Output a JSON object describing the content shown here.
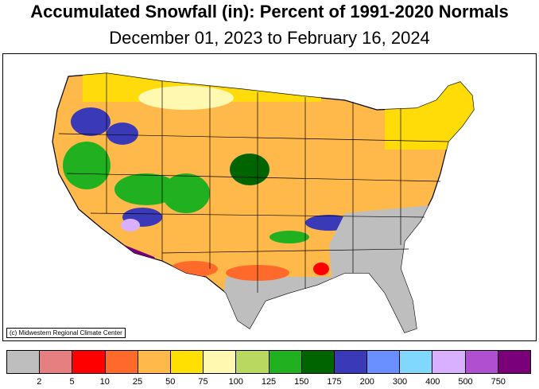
{
  "title": "Accumulated Snowfall (in): Percent of 1991-2020 Normals",
  "subtitle": "December 01, 2023 to February 16, 2024",
  "credit": "(c) Midwestern Regional Climate Center",
  "legend": {
    "colors": [
      "#bebebe",
      "#e68080",
      "#ff0000",
      "#ff6a2a",
      "#ffb84a",
      "#ffe000",
      "#fff8b0",
      "#b8d860",
      "#20b020",
      "#006400",
      "#3a3ab8",
      "#6a90ff",
      "#80d8ff",
      "#d8b0ff",
      "#b050d0",
      "#7a007a"
    ],
    "labels": [
      "2",
      "5",
      "10",
      "25",
      "50",
      "75",
      "100",
      "125",
      "150",
      "175",
      "200",
      "300",
      "400",
      "500",
      "750"
    ]
  }
}
